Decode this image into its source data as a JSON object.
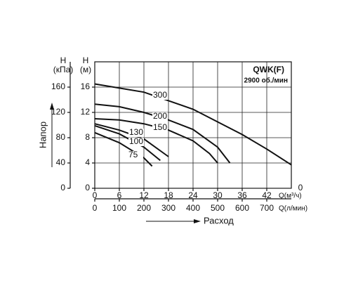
{
  "chart_data": {
    "type": "line",
    "title": "QWK(F)",
    "subtitle": "2900 об./мин",
    "y_label": "H",
    "y_unit": "(м)",
    "y2_label": "H",
    "y2_unit": "(кПа)",
    "y_title": "Напор",
    "x_title": "Расход",
    "x_unit": "Q(м³/ч)",
    "x2_unit": "Q(л/мин)",
    "extra_label": "0",
    "xlim": [
      0,
      48
    ],
    "xticks": [
      0,
      6,
      12,
      18,
      24,
      30,
      36,
      42
    ],
    "x2lim": [
      0,
      800
    ],
    "x2ticks": [
      0,
      100,
      200,
      300,
      400,
      500,
      600,
      700
    ],
    "ylim": [
      0,
      20
    ],
    "yticks": [
      0,
      4,
      8,
      12,
      16
    ],
    "y2lim": [
      0,
      200
    ],
    "y2ticks": [
      0,
      40,
      80,
      120,
      160
    ],
    "grid": true,
    "color": "#111111",
    "series": [
      {
        "name": "300",
        "x": [
          0,
          12,
          24,
          30,
          36,
          42,
          48
        ],
        "values": [
          16.5,
          15.2,
          12.5,
          10.5,
          8.5,
          6.2,
          3.7
        ]
      },
      {
        "name": "200",
        "x": [
          0,
          6,
          12,
          18,
          24,
          30,
          33
        ],
        "values": [
          13.3,
          12.9,
          12,
          10.8,
          9.3,
          6.5,
          4
        ]
      },
      {
        "name": "150",
        "x": [
          0,
          6,
          12,
          18,
          24,
          28,
          30
        ],
        "values": [
          11,
          10.8,
          10.2,
          9.2,
          7.5,
          5.5,
          4
        ]
      },
      {
        "name": "130",
        "x": [
          0,
          6,
          12,
          18
        ],
        "values": [
          10.2,
          9.2,
          7.8,
          5
        ]
      },
      {
        "name": "100",
        "x": [
          0,
          6,
          12,
          16
        ],
        "values": [
          9.9,
          8.6,
          6.5,
          4.4
        ]
      },
      {
        "name": "75",
        "x": [
          0,
          6,
          12,
          14
        ],
        "values": [
          8.8,
          7.2,
          4.8,
          3.5
        ]
      }
    ]
  }
}
